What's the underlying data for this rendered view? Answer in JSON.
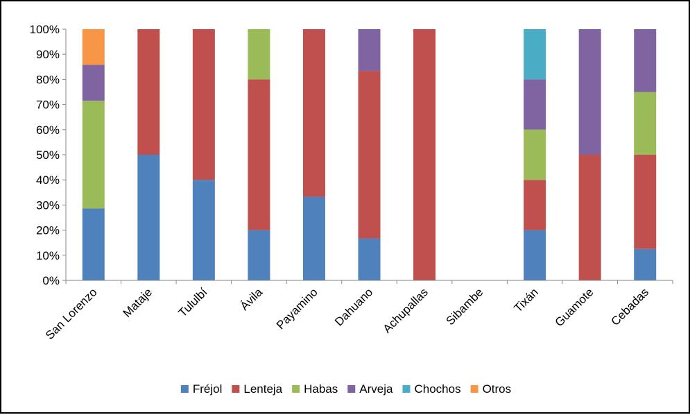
{
  "chart_data": {
    "type": "bar",
    "stacked": true,
    "percent": true,
    "title": "",
    "xlabel": "",
    "ylabel": "",
    "ylim": [
      0,
      100
    ],
    "y_ticks": [
      "0%",
      "10%",
      "20%",
      "30%",
      "40%",
      "50%",
      "60%",
      "70%",
      "80%",
      "90%",
      "100%"
    ],
    "grid": false,
    "legend_position": "bottom",
    "categories": [
      "San Lorenzo",
      "Mataje",
      "Tululbí",
      "Ávila",
      "Payamino",
      "Dahuano",
      "Achupallas",
      "Sibambe",
      "Tixán",
      "Guamote",
      "Cebadas"
    ],
    "series": [
      {
        "name": "Fréjol",
        "color": "#4F81BD",
        "values": [
          28.6,
          50,
          40,
          20,
          33.3,
          16.7,
          0,
          0,
          20,
          0,
          12.5
        ]
      },
      {
        "name": "Lenteja",
        "color": "#C0504D",
        "values": [
          0,
          50,
          60,
          60,
          66.7,
          66.7,
          100,
          0,
          20,
          50,
          37.5
        ]
      },
      {
        "name": "Habas",
        "color": "#9BBB59",
        "values": [
          42.9,
          0,
          0,
          20,
          0,
          0,
          0,
          0,
          20,
          0,
          25
        ]
      },
      {
        "name": "Arveja",
        "color": "#8064A2",
        "values": [
          14.3,
          0,
          0,
          0,
          0,
          16.6,
          0,
          0,
          20,
          50,
          25
        ]
      },
      {
        "name": "Chochos",
        "color": "#4BACC6",
        "values": [
          0,
          0,
          0,
          0,
          0,
          0,
          0,
          0,
          20,
          0,
          0
        ]
      },
      {
        "name": "Otros",
        "color": "#F79646",
        "values": [
          14.2,
          0,
          0,
          0,
          0,
          0,
          0,
          0,
          0,
          0,
          0
        ]
      }
    ]
  }
}
